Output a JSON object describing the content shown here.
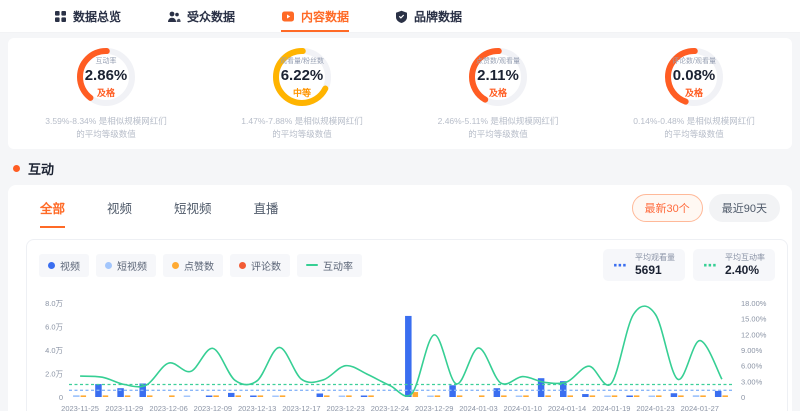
{
  "nav": {
    "tabs": [
      {
        "label": "数据总览",
        "active": false
      },
      {
        "label": "受众数据",
        "active": false
      },
      {
        "label": "内容数据",
        "active": true
      },
      {
        "label": "品牌数据",
        "active": false
      }
    ]
  },
  "gauges": [
    {
      "label": "互动率",
      "value": "2.86%",
      "status": "及格",
      "arc_percent": 40,
      "arc_color": "#ff5d23",
      "status_color": "#ff5d23",
      "caption1": "3.59%-8.34% 是相似规模网红们",
      "caption2": "的平均等级数值"
    },
    {
      "label": "观看量/粉丝数",
      "value": "6.22%",
      "status": "中等",
      "arc_percent": 68,
      "arc_color": "#ffb400",
      "status_color": "#ff9500",
      "caption1": "1.47%-7.88% 是相似规模网红们",
      "caption2": "的平均等级数值"
    },
    {
      "label": "点赞数/观看量",
      "value": "2.11%",
      "status": "及格",
      "arc_percent": 42,
      "arc_color": "#ff5d23",
      "status_color": "#ff5d23",
      "caption1": "2.46%-5.11% 是相似规模网红们",
      "caption2": "的平均等级数值"
    },
    {
      "label": "评论数/观看量",
      "value": "0.08%",
      "status": "及格",
      "arc_percent": 45,
      "arc_color": "#ff5d23",
      "status_color": "#ff5d23",
      "caption1": "0.14%-0.48% 是相似规模网红们",
      "caption2": "的平均等级数值"
    }
  ],
  "section": {
    "title": "互动"
  },
  "content_tabs": [
    {
      "label": "全部",
      "active": true
    },
    {
      "label": "视频",
      "active": false
    },
    {
      "label": "短视频",
      "active": false
    },
    {
      "label": "直播",
      "active": false
    }
  ],
  "filters": [
    {
      "label": "最新30个",
      "active": true
    },
    {
      "label": "最近90天",
      "active": false
    }
  ],
  "legend": [
    {
      "label": "视频",
      "color": "#3a6ef0",
      "marker": "dot"
    },
    {
      "label": "短视频",
      "color": "#a3c6fc",
      "marker": "dot"
    },
    {
      "label": "点赞数",
      "color": "#ffaa33",
      "marker": "dot"
    },
    {
      "label": "评论数",
      "color": "#f25b35",
      "marker": "dot"
    },
    {
      "label": "互动率",
      "color": "#36cf94",
      "marker": "line"
    }
  ],
  "stats": [
    {
      "label": "平均观看量",
      "value": "5691",
      "dot_color": "#3a6ef0"
    },
    {
      "label": "平均互动率",
      "value": "2.40%",
      "dot_color": "#36cf94"
    }
  ],
  "chart_data": {
    "type": "bar+line",
    "x_tick_labels": [
      "2023-11-25",
      "2023-11-29",
      "2023-12-06",
      "2023-12-09",
      "2023-12-13",
      "2023-12-17",
      "2023-12-23",
      "2023-12-24",
      "2023-12-29",
      "2024-01-03",
      "2024-01-10",
      "2024-01-14",
      "2024-01-19",
      "2024-01-23",
      "2024-01-27"
    ],
    "slots_per_label": 2,
    "left_axis": {
      "max": 80000,
      "ticks": [
        {
          "label": "8.0万",
          "value": 80000
        },
        {
          "label": "6.0万",
          "value": 60000
        },
        {
          "label": "4.0万",
          "value": 40000
        },
        {
          "label": "2.0万",
          "value": 20000
        },
        {
          "label": "0",
          "value": 0
        }
      ]
    },
    "right_axis": {
      "max": 18,
      "ticks": [
        {
          "label": "18.00%",
          "value": 18
        },
        {
          "label": "15.00%",
          "value": 15
        },
        {
          "label": "12.00%",
          "value": 12
        },
        {
          "label": "9.00%",
          "value": 9
        },
        {
          "label": "6.00%",
          "value": 6
        },
        {
          "label": "3.00%",
          "value": 3
        },
        {
          "label": "0",
          "value": 0
        }
      ]
    },
    "avg_lines": [
      {
        "name": "平均观看量",
        "axis": "left",
        "value": 5691,
        "color": "#8ab6f8"
      },
      {
        "name": "平均互动率",
        "axis": "right",
        "value": 2.4,
        "color": "#3ecf9a"
      }
    ],
    "series": [
      {
        "name": "视频",
        "type": "bar",
        "axis": "left",
        "color": "#3a6ef0",
        "values": [
          0,
          11000,
          7500,
          11500,
          0,
          0,
          800,
          3500,
          1200,
          0,
          0,
          3000,
          0,
          900,
          0,
          69000,
          0,
          10000,
          0,
          7500,
          0,
          16000,
          13500,
          2500,
          0,
          800,
          0,
          3200,
          0,
          5200
        ]
      },
      {
        "name": "短视频",
        "type": "bar",
        "axis": "left",
        "color": "#a3c6fc",
        "values": [
          1500,
          0,
          0,
          0,
          0,
          600,
          0,
          0,
          0,
          700,
          0,
          0,
          800,
          0,
          0,
          0,
          1200,
          0,
          0,
          0,
          900,
          0,
          0,
          0,
          1000,
          0,
          700,
          0,
          1500,
          0
        ]
      },
      {
        "name": "点赞数",
        "type": "bar",
        "axis": "left",
        "color": "#ffaa33",
        "values": [
          90,
          700,
          450,
          700,
          500,
          0,
          60,
          250,
          90,
          60,
          0,
          200,
          60,
          70,
          0,
          4200,
          90,
          600,
          60,
          450,
          70,
          950,
          800,
          150,
          80,
          60,
          50,
          200,
          100,
          300
        ]
      },
      {
        "name": "评论数",
        "type": "bar",
        "axis": "left",
        "color": "#f25b35",
        "values": [
          5,
          30,
          20,
          30,
          20,
          3,
          3,
          10,
          5,
          3,
          2,
          8,
          3,
          3,
          2,
          180,
          5,
          25,
          3,
          18,
          3,
          40,
          35,
          8,
          4,
          3,
          2,
          8,
          5,
          12
        ]
      },
      {
        "name": "互动率",
        "type": "line",
        "axis": "right",
        "color": "#36cf94",
        "values": [
          4.0,
          3.8,
          2.4,
          2.3,
          6.5,
          4.9,
          9.3,
          3.2,
          3.1,
          9.5,
          3.4,
          3.3,
          6.0,
          4.3,
          2.2,
          0.7,
          11.9,
          2.5,
          9.4,
          2.7,
          3.9,
          2.8,
          2.9,
          5.9,
          2.6,
          15.8,
          15.8,
          3.4,
          10.8,
          3.4
        ]
      }
    ]
  }
}
